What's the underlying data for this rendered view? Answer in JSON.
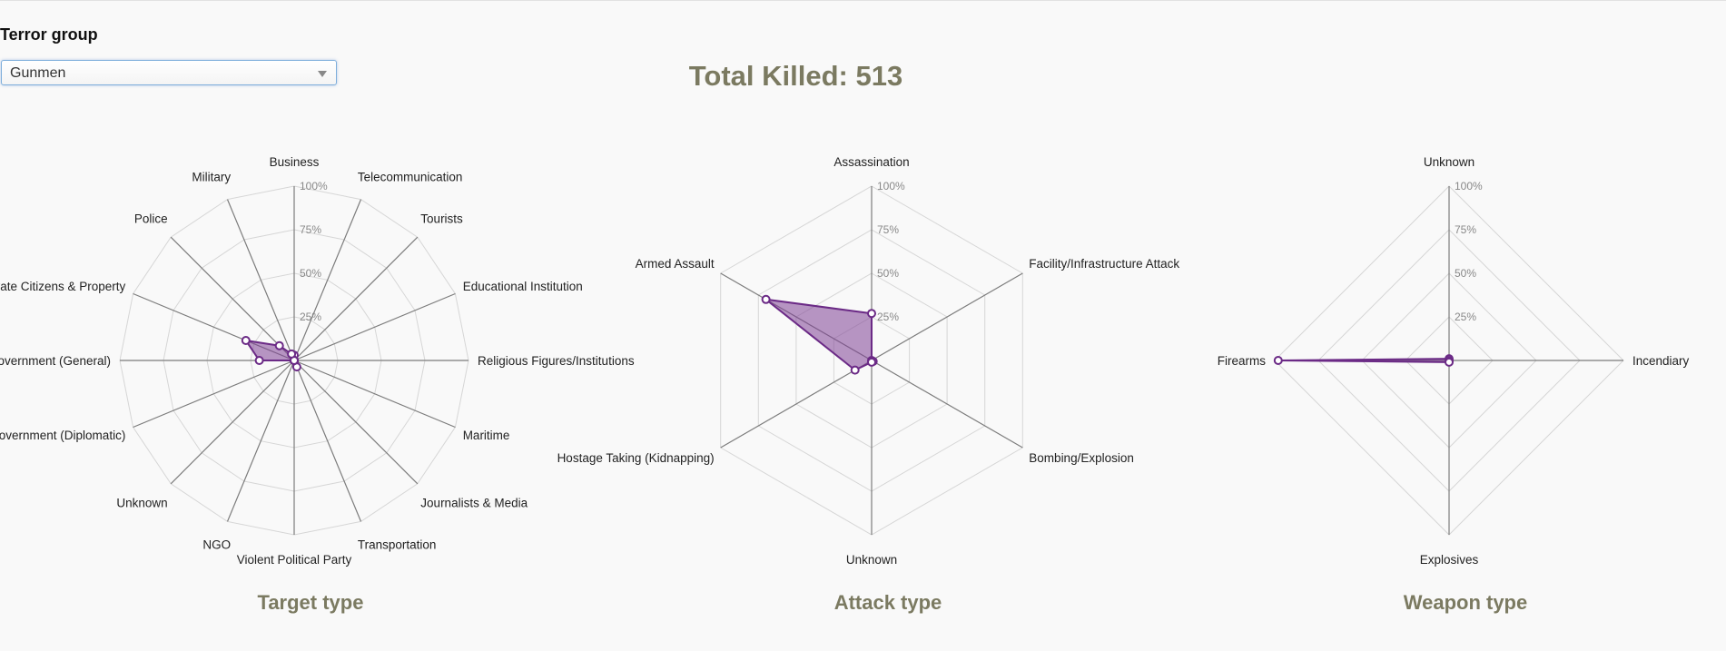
{
  "filter": {
    "label": "Terror group",
    "selected": "Gunmen"
  },
  "total": {
    "text": "Total Killed: 513"
  },
  "chart_data": [
    {
      "type": "radar",
      "title": "Target type",
      "range": [
        0,
        100
      ],
      "ticks": [
        "25%",
        "50%",
        "75%",
        "100%"
      ],
      "axes": [
        "Business",
        "Telecommunication",
        "Tourists",
        "Educational Institution",
        "Religious Figures/Institutions",
        "Maritime",
        "Journalists & Media",
        "Transportation",
        "Violent Political Party",
        "NGO",
        "Unknown",
        "Government (Diplomatic)",
        "Government (General)",
        "Private Citizens & Property",
        "Police",
        "Military"
      ],
      "values": [
        3,
        0,
        0,
        0,
        0,
        0,
        0,
        4,
        0,
        0,
        0,
        0,
        20,
        30,
        12,
        4
      ]
    },
    {
      "type": "radar",
      "title": "Attack type",
      "range": [
        0,
        100
      ],
      "ticks": [
        "25%",
        "50%",
        "75%",
        "100%"
      ],
      "axes": [
        "Assassination",
        "Facility/Infrastructure Attack",
        "Bombing/Explosion",
        "Unknown",
        "Hostage Taking (Kidnapping)",
        "Armed Assault"
      ],
      "values": [
        27,
        0,
        1,
        1,
        11,
        70
      ]
    },
    {
      "type": "radar",
      "title": "Weapon type",
      "range": [
        0,
        100
      ],
      "ticks": [
        "25%",
        "50%",
        "75%",
        "100%"
      ],
      "axes": [
        "Unknown",
        "Incendiary",
        "Explosives",
        "Firearms"
      ],
      "values": [
        1,
        0,
        1,
        98
      ]
    }
  ]
}
